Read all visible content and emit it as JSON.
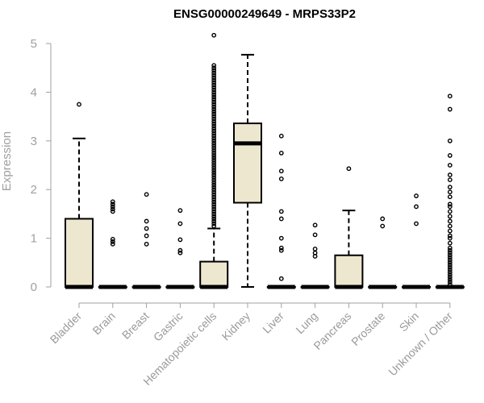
{
  "chart_data": {
    "type": "box",
    "title": "ENSG00000249649 - MRPS33P2",
    "ylabel": "Expression",
    "xlabel": "",
    "ylim": [
      0,
      5
    ],
    "yticks": [
      0,
      1,
      2,
      3,
      4,
      5
    ],
    "grid": false,
    "colors": {
      "box_fill": "#ede7cf",
      "axis": "#a0a0a0",
      "stroke": "#000000"
    },
    "categories": [
      "Bladder",
      "Brain",
      "Breast",
      "Gastric",
      "Hematopoietic cells",
      "Kidney",
      "Liver",
      "Lung",
      "Pancreas",
      "Prostate",
      "Skin",
      "Unknown / Other"
    ],
    "boxes": [
      {
        "category": "Bladder",
        "q1": 0,
        "median": 0,
        "q3": 1.4,
        "whisker_low": 0,
        "whisker_high": 3.05,
        "outliers": [
          3.75
        ]
      },
      {
        "category": "Brain",
        "q1": 0,
        "median": 0,
        "q3": 0,
        "whisker_low": 0,
        "whisker_high": 0,
        "outliers": [
          0.88,
          0.93,
          0.98,
          1.55,
          1.6,
          1.65,
          1.7,
          1.75
        ]
      },
      {
        "category": "Breast",
        "q1": 0,
        "median": 0,
        "q3": 0,
        "whisker_low": 0,
        "whisker_high": 0,
        "outliers": [
          0.88,
          1.05,
          1.2,
          1.35,
          1.9
        ]
      },
      {
        "category": "Gastric",
        "q1": 0,
        "median": 0,
        "q3": 0,
        "whisker_low": 0,
        "whisker_high": 0,
        "outliers": [
          0.7,
          0.75,
          0.97,
          1.3,
          1.57
        ]
      },
      {
        "category": "Hematopoietic cells",
        "q1": 0,
        "median": 0,
        "q3": 0.52,
        "whisker_low": 0,
        "whisker_high": 1.2,
        "outliers": [
          1.25,
          1.3,
          1.35,
          1.4,
          1.45,
          1.5,
          1.55,
          1.6,
          1.65,
          1.7,
          1.75,
          1.8,
          1.85,
          1.9,
          1.95,
          2.0,
          2.05,
          2.1,
          2.15,
          2.2,
          2.25,
          2.3,
          2.35,
          2.4,
          2.45,
          2.5,
          2.55,
          2.6,
          2.65,
          2.7,
          2.75,
          2.8,
          2.85,
          2.9,
          2.95,
          3.0,
          3.05,
          3.1,
          3.15,
          3.2,
          3.25,
          3.3,
          3.35,
          3.4,
          3.45,
          3.5,
          3.55,
          3.6,
          3.65,
          3.7,
          3.75,
          3.8,
          3.85,
          3.9,
          3.95,
          4.0,
          4.05,
          4.1,
          4.15,
          4.2,
          4.25,
          4.3,
          4.35,
          4.4,
          4.45,
          4.5,
          4.55,
          5.17
        ]
      },
      {
        "category": "Kidney",
        "q1": 1.73,
        "median": 2.95,
        "q3": 3.36,
        "whisker_low": 0,
        "whisker_high": 4.77,
        "outliers": []
      },
      {
        "category": "Liver",
        "q1": 0,
        "median": 0,
        "q3": 0,
        "whisker_low": 0,
        "whisker_high": 0,
        "outliers": [
          0.17,
          0.75,
          0.8,
          1.0,
          1.4,
          1.55,
          2.22,
          2.38,
          2.75,
          3.1
        ]
      },
      {
        "category": "Lung",
        "q1": 0,
        "median": 0,
        "q3": 0,
        "whisker_low": 0,
        "whisker_high": 0,
        "outliers": [
          0.63,
          0.7,
          0.78,
          1.07,
          1.27
        ]
      },
      {
        "category": "Pancreas",
        "q1": 0,
        "median": 0,
        "q3": 0.65,
        "whisker_low": 0,
        "whisker_high": 1.57,
        "outliers": [
          2.43
        ]
      },
      {
        "category": "Prostate",
        "q1": 0,
        "median": 0,
        "q3": 0,
        "whisker_low": 0,
        "whisker_high": 0,
        "outliers": [
          1.25,
          1.4
        ]
      },
      {
        "category": "Skin",
        "q1": 0,
        "median": 0,
        "q3": 0,
        "whisker_low": 0,
        "whisker_high": 0,
        "outliers": [
          1.3,
          1.65,
          1.87
        ]
      },
      {
        "category": "Unknown / Other",
        "q1": 0,
        "median": 0,
        "q3": 0,
        "whisker_low": 0,
        "whisker_high": 0,
        "outliers": [
          0.05,
          0.1,
          0.15,
          0.2,
          0.25,
          0.3,
          0.35,
          0.4,
          0.45,
          0.5,
          0.55,
          0.6,
          0.65,
          0.7,
          0.75,
          0.8,
          0.9,
          1.0,
          1.05,
          1.15,
          1.25,
          1.35,
          1.45,
          1.55,
          1.65,
          1.7,
          1.85,
          1.95,
          2.05,
          2.2,
          2.3,
          2.5,
          2.7,
          3.0,
          3.65,
          3.92
        ]
      }
    ]
  }
}
